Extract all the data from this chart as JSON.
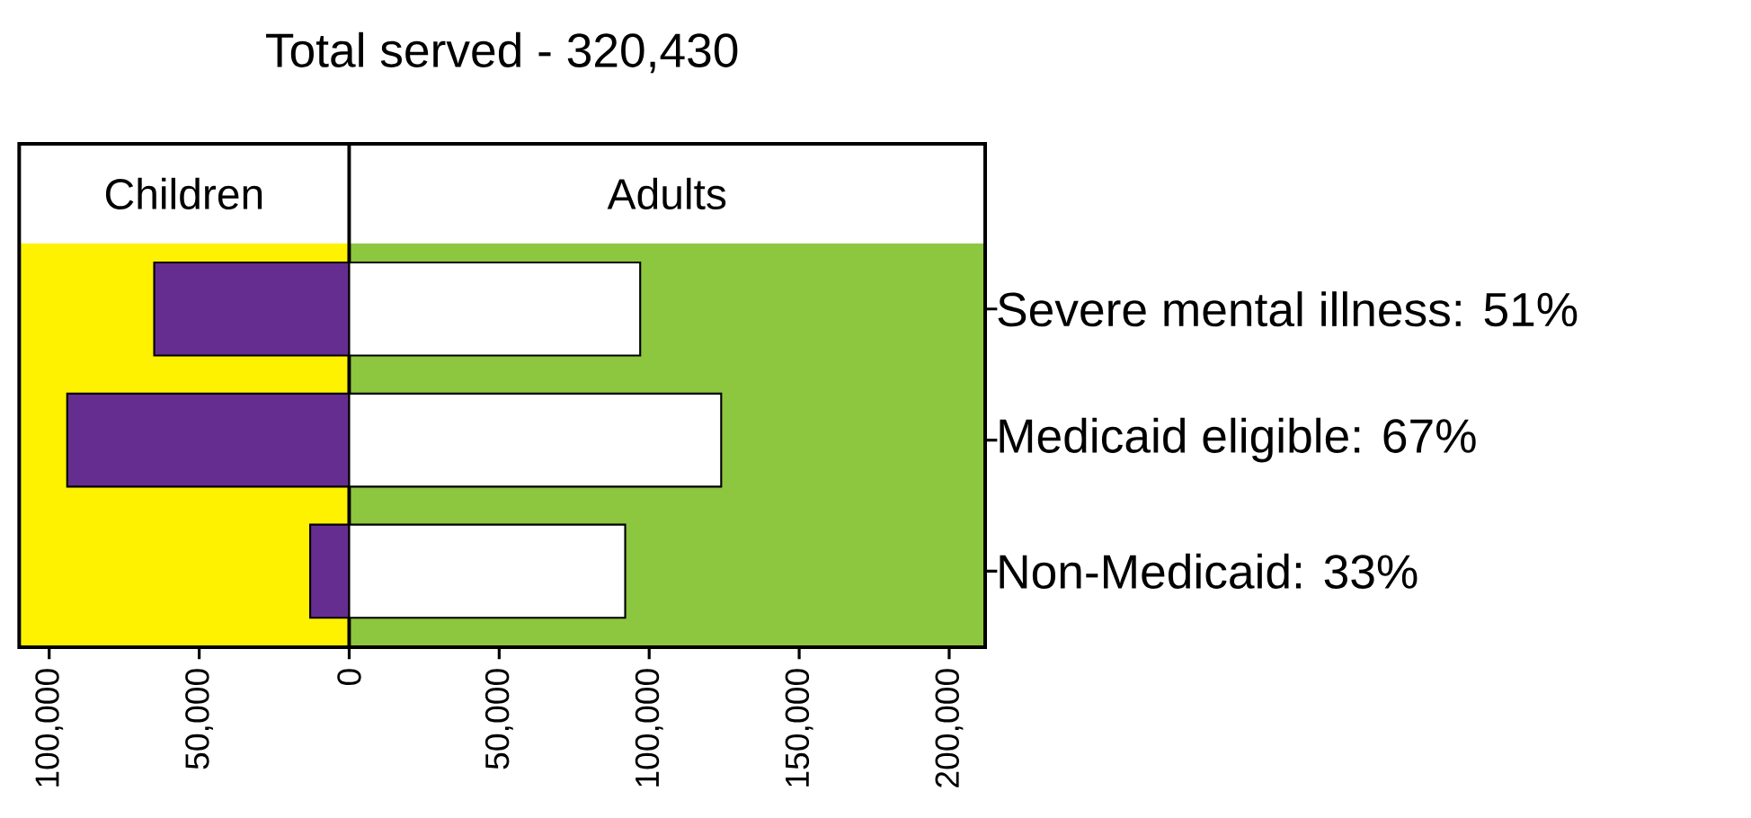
{
  "chart_data": {
    "type": "bar",
    "orientation": "horizontal",
    "title": "Total served - 320,430",
    "categories": [
      "Severe mental illness: 51%",
      "Medicaid eligible: 67%",
      "Non-Medicaid: 33%"
    ],
    "series": [
      {
        "color": "#662d91",
        "values": [
          -65000,
          -94000,
          -13000
        ]
      },
      {
        "color": "#ffffff",
        "values": [
          97000,
          124000,
          92000
        ]
      }
    ],
    "xlim": [
      -110000,
      212000
    ],
    "xticks": [
      {
        "value": -100000,
        "label": "100,000"
      },
      {
        "value": -50000,
        "label": "50,000"
      },
      0,
      {
        "value": 50000,
        "label": "50,000"
      },
      {
        "value": 100000,
        "label": "100,000"
      },
      {
        "value": 150000,
        "label": "150,000"
      },
      {
        "value": 200000,
        "label": "200,000"
      }
    ],
    "bands": [
      {
        "axis": "x",
        "from": -110000,
        "to": 0,
        "label": "Children",
        "color": "#fff200"
      },
      {
        "axis": "x",
        "from": 0,
        "to": 212000,
        "label": "Adults",
        "color": "#8dc63f"
      }
    ],
    "ref_lines": [
      {
        "axis": "x",
        "value": 0,
        "color": "#000000"
      }
    ],
    "stacked": true
  }
}
